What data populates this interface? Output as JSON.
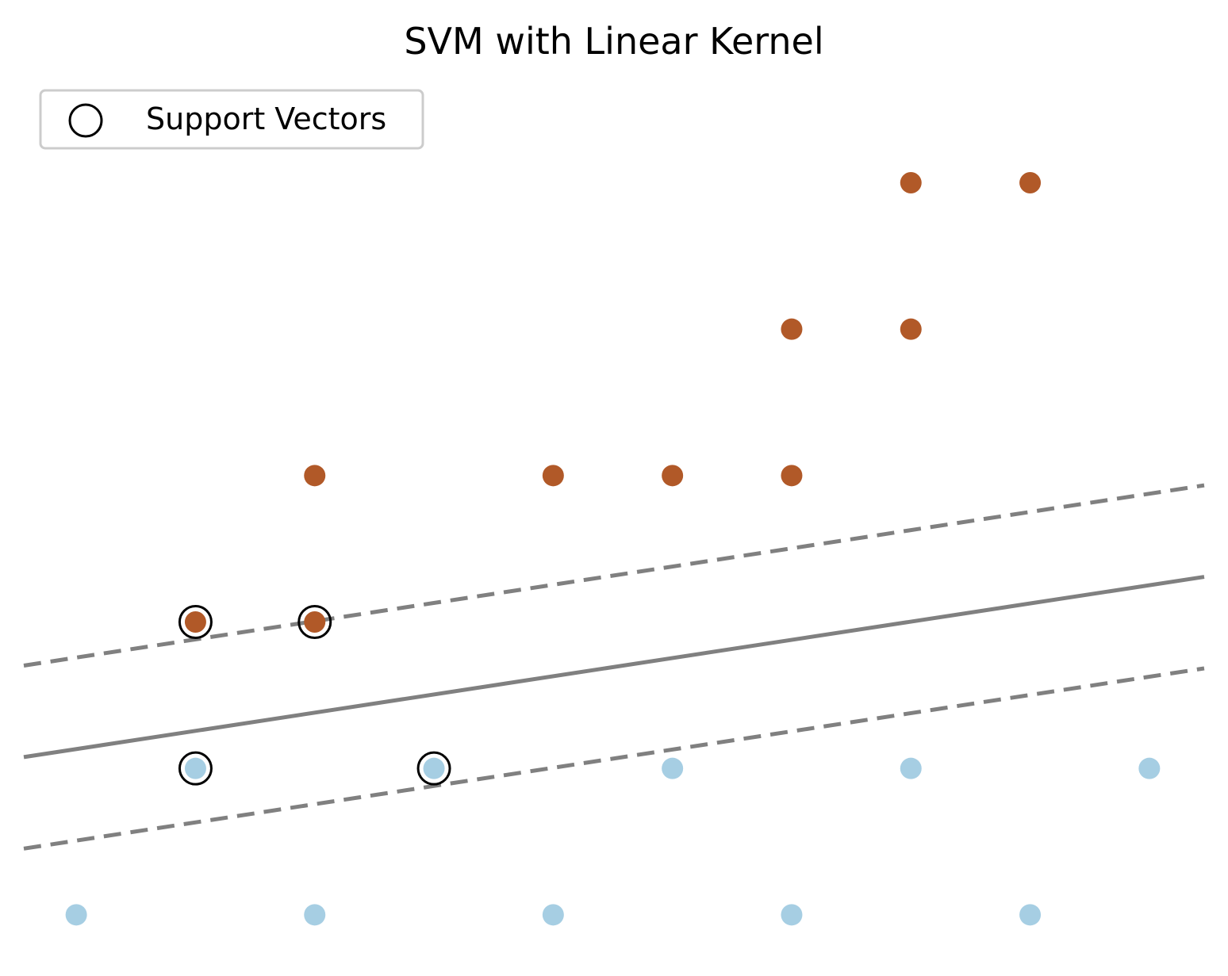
{
  "chart_data": {
    "type": "scatter",
    "title": "SVM with Linear Kernel",
    "xlabel": "",
    "ylabel": "",
    "xlim": [
      -0.22,
      4.73
    ],
    "ylim": [
      -2.25,
      3.75
    ],
    "axes_visible": false,
    "grid": false,
    "legend": {
      "placement": "top-left",
      "entries": [
        "Support Vectors"
      ]
    },
    "class_colors": {
      "positive": "#b15928",
      "negative": "#a6cee3"
    },
    "support_vector_color": "#000000",
    "boundary_color": "#808080",
    "series": [
      {
        "class": "positive",
        "points": [
          {
            "x": 3.5,
            "y": 3
          },
          {
            "x": 4,
            "y": 3
          },
          {
            "x": 3,
            "y": 2
          },
          {
            "x": 3.5,
            "y": 2
          },
          {
            "x": 1,
            "y": 1
          },
          {
            "x": 2,
            "y": 1
          },
          {
            "x": 2.5,
            "y": 1
          },
          {
            "x": 3,
            "y": 1
          },
          {
            "x": 0.5,
            "y": 0
          },
          {
            "x": 1,
            "y": 0
          }
        ]
      },
      {
        "class": "negative",
        "points": [
          {
            "x": 0.5,
            "y": -1
          },
          {
            "x": 1.5,
            "y": -1
          },
          {
            "x": 2.5,
            "y": -1
          },
          {
            "x": 3.5,
            "y": -1
          },
          {
            "x": 4.5,
            "y": -1
          },
          {
            "x": 0,
            "y": -2
          },
          {
            "x": 1,
            "y": -2
          },
          {
            "x": 2,
            "y": -2
          },
          {
            "x": 3,
            "y": -2
          },
          {
            "x": 4,
            "y": -2
          }
        ]
      }
    ],
    "support_vectors": [
      {
        "x": 0.5,
        "y": 0
      },
      {
        "x": 1,
        "y": 0
      },
      {
        "x": 0.5,
        "y": -1
      },
      {
        "x": 1.5,
        "y": -1
      }
    ],
    "decision_boundary": {
      "slope": 0.2487,
      "intercept": -0.868,
      "margin_offset": 0.625
    }
  }
}
